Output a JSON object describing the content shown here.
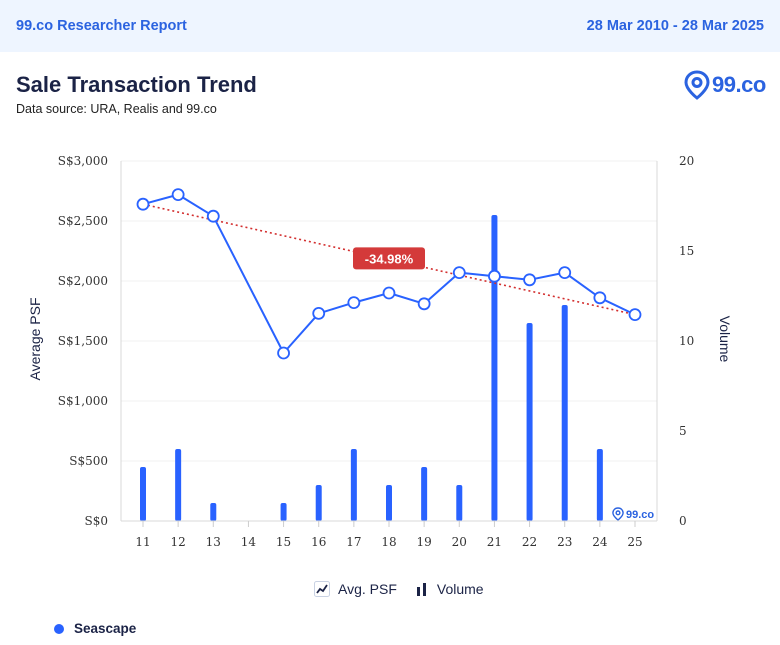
{
  "header": {
    "brand": "99.co Researcher Report",
    "date_range": "28 Mar 2010 - 28 Mar 2025"
  },
  "title": "Sale Transaction Trend",
  "subtitle": "Data source: URA, Realis and 99.co",
  "logo_text": "99.co",
  "watermark_text": "99.co",
  "colors": {
    "accent": "#2962ff",
    "brand": "#2b63e0",
    "trend": "#d32f2f",
    "badge": "#d43a3a"
  },
  "legend": {
    "avg_psf": "Avg. PSF",
    "volume": "Volume"
  },
  "series_label": "Seascape",
  "chart_data": {
    "type": "bar+line",
    "categories": [
      "11",
      "12",
      "13",
      "14",
      "15",
      "16",
      "17",
      "18",
      "19",
      "20",
      "21",
      "22",
      "23",
      "24",
      "25"
    ],
    "y_left": {
      "label": "Average PSF",
      "range": [
        0,
        3000
      ],
      "ticks": [
        "S$0",
        "S$500",
        "S$1,000",
        "S$1,500",
        "S$2,000",
        "S$2,500",
        "S$3,000"
      ]
    },
    "y_right": {
      "label": "Volume",
      "range": [
        0,
        20
      ],
      "ticks": [
        "0",
        "5",
        "10",
        "15",
        "20"
      ]
    },
    "series": [
      {
        "name": "Avg. PSF",
        "type": "line",
        "axis": "left",
        "values": [
          2640,
          2720,
          2540,
          null,
          1400,
          1730,
          1820,
          1900,
          1810,
          2070,
          2040,
          2010,
          2070,
          1860,
          1720
        ]
      },
      {
        "name": "Volume",
        "type": "bar",
        "axis": "right",
        "values": [
          3,
          4,
          1,
          0,
          1,
          2,
          4,
          2,
          3,
          2,
          17,
          11,
          12,
          4,
          0
        ]
      }
    ],
    "trendline": {
      "start": 2640,
      "end": 1720,
      "label": "-34.98%"
    }
  }
}
